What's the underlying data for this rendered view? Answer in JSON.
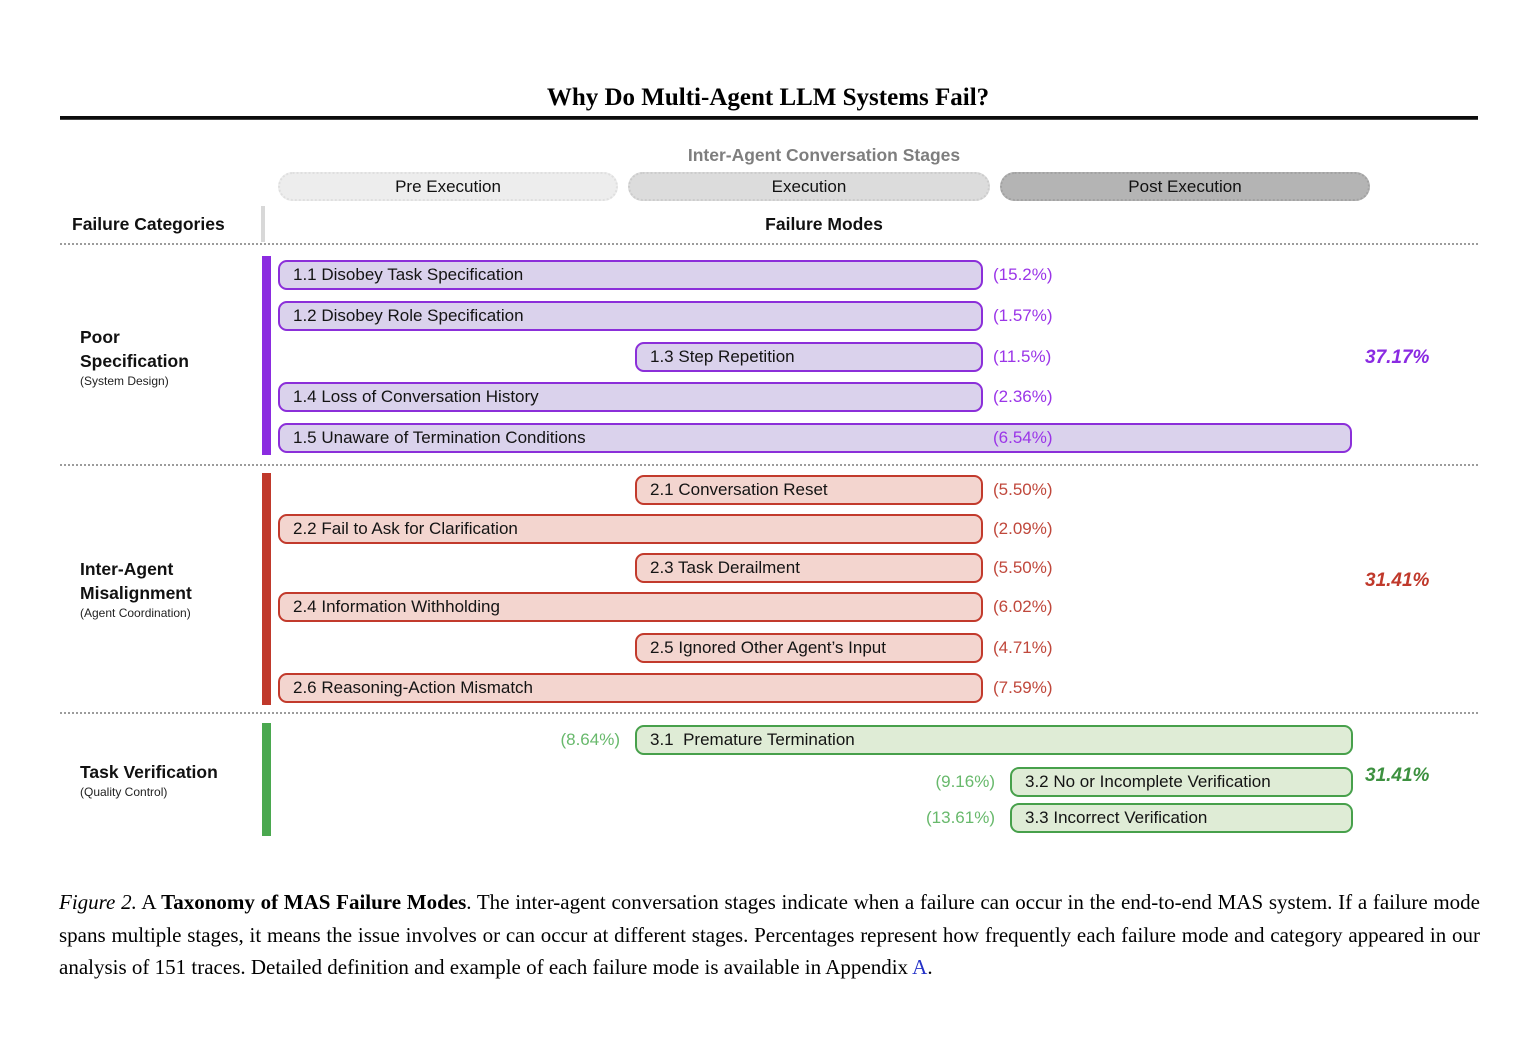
{
  "paper": {
    "running_title": "Why Do Multi-Agent LLM Systems Fail?"
  },
  "figure": {
    "stages_header": "Inter-Agent Conversation Stages",
    "stages": [
      {
        "label": "Pre Execution"
      },
      {
        "label": "Execution"
      },
      {
        "label": "Post Execution"
      }
    ],
    "left_header": "Failure Categories",
    "modes_header": "Failure Modes",
    "categories": [
      {
        "name": "Poor\nSpecification",
        "subtitle": "(System Design)",
        "total": "37.17%",
        "color": {
          "vbar": "#8b2be0",
          "border": "#8b2fd9",
          "fill": "#dad2ec",
          "pct": "#9b35e8",
          "total": "#8a2be2"
        },
        "rows": [
          {
            "label": "1.1 Disobey Task Specification",
            "pct": "(15.2%)",
            "span": "pre_exec",
            "pct_side": "right"
          },
          {
            "label": "1.2 Disobey Role Specification",
            "pct": "(1.57%)",
            "span": "pre_exec",
            "pct_side": "right"
          },
          {
            "label": "1.3 Step Repetition",
            "pct": "(11.5%)",
            "span": "exec",
            "pct_side": "right"
          },
          {
            "label": "1.4 Loss of Conversation History",
            "pct": "(2.36%)",
            "span": "pre_exec",
            "pct_side": "right"
          },
          {
            "label": "1.5 Unaware of Termination Conditions",
            "pct": "(6.54%)",
            "span": "all",
            "pct_side": "inside"
          }
        ]
      },
      {
        "name": "Inter-Agent\nMisalignment",
        "subtitle": "(Agent Coordination)",
        "total": "31.41%",
        "color": {
          "vbar": "#c0392b",
          "border": "#c23a2c",
          "fill": "#f3d5cf",
          "pct": "#c0483c",
          "total": "#c0392b"
        },
        "rows": [
          {
            "label": "2.1 Conversation Reset",
            "pct": "(5.50%)",
            "span": "exec",
            "pct_side": "right"
          },
          {
            "label": "2.2 Fail to Ask for Clarification",
            "pct": "(2.09%)",
            "span": "pre_exec",
            "pct_side": "right"
          },
          {
            "label": "2.3 Task Derailment",
            "pct": "(5.50%)",
            "span": "exec",
            "pct_side": "right"
          },
          {
            "label": "2.4 Information Withholding",
            "pct": "(6.02%)",
            "span": "pre_exec",
            "pct_side": "right"
          },
          {
            "label": "2.5 Ignored Other Agent’s Input",
            "pct": "(4.71%)",
            "span": "exec",
            "pct_side": "right"
          },
          {
            "label": "2.6 Reasoning-Action Mismatch",
            "pct": "(7.59%)",
            "span": "pre_exec",
            "pct_side": "right"
          }
        ]
      },
      {
        "name": "Task Verification",
        "subtitle": "(Quality Control)",
        "total": "31.41%",
        "color": {
          "vbar": "#4aa84f",
          "border": "#47a04b",
          "fill": "#dfecd6",
          "pct": "#68b96c",
          "total": "#3d9140"
        },
        "rows": [
          {
            "label": "3.1  Premature Termination",
            "pct": "(8.64%)",
            "span": "exec_post",
            "pct_side": "left"
          },
          {
            "label": "3.2 No or Incomplete Verification",
            "pct": "(9.16%)",
            "span": "post",
            "pct_side": "left"
          },
          {
            "label": "3.3 Incorrect Verification",
            "pct": "(13.61%)",
            "span": "post",
            "pct_side": "left"
          }
        ]
      }
    ]
  },
  "caption": {
    "figure_label": "Figure 2.",
    "prefix": " A ",
    "bold": "Taxonomy of MAS Failure Modes",
    "body": ". The inter-agent conversation stages indicate when a failure can occur in the end-to-end MAS system. If a failure mode spans multiple stages, it means the issue involves or can occur at different stages. Percentages represent how frequently each failure mode and category appeared in our analysis of 151 traces. Detailed definition and example of each failure mode is available in Appendix ",
    "appendix_link": "A",
    "suffix": "."
  }
}
